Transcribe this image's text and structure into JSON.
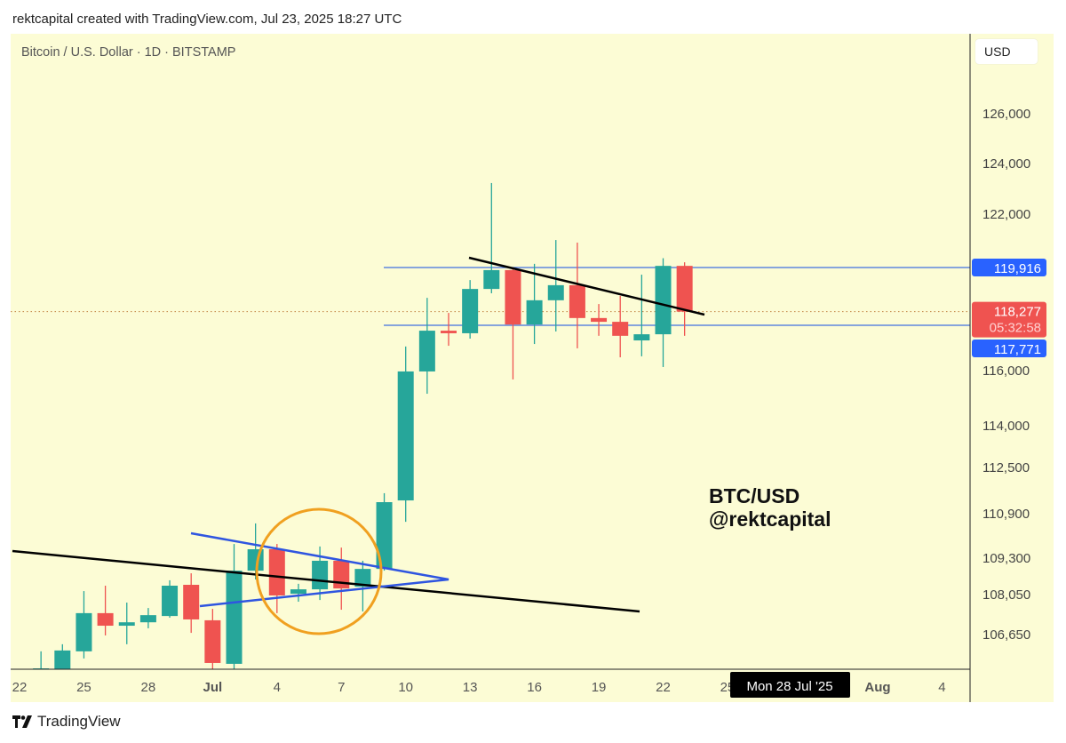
{
  "header": {
    "credit": "rektcapital created with TradingView.com, Jul 23, 2025 18:27 UTC"
  },
  "symbol_line": "Bitcoin / U.S. Dollar · 1D · BITSTAMP",
  "currency_button": "USD",
  "footer": {
    "brand": "TradingView"
  },
  "colors": {
    "up": "#26a69a",
    "down": "#ef5350",
    "background": "#fcfcd5",
    "level_lines": "#3f6fe0",
    "circle": "#f0a020",
    "trendlines": "#000000"
  },
  "chart_data": {
    "type": "candlestick",
    "title": "Bitcoin / U.S. Dollar · 1D · BITSTAMP",
    "y_scale": "log",
    "y_ticks": [
      126000,
      124000,
      122000,
      116000,
      114000,
      112500,
      110900,
      109300,
      108050,
      106650
    ],
    "y_tick_labels": [
      "126,000",
      "124,000",
      "122,000",
      "116,000",
      "114,000",
      "112,500",
      "110,900",
      "109,300",
      "108,050",
      "106,650"
    ],
    "x_tick_labels": [
      {
        "label": "22",
        "date": "2025-06-22"
      },
      {
        "label": "25",
        "date": "2025-06-25"
      },
      {
        "label": "28",
        "date": "2025-06-28"
      },
      {
        "label": "Jul",
        "date": "2025-07-01",
        "bold": true
      },
      {
        "label": "4",
        "date": "2025-07-04"
      },
      {
        "label": "7",
        "date": "2025-07-07"
      },
      {
        "label": "10",
        "date": "2025-07-10"
      },
      {
        "label": "13",
        "date": "2025-07-13"
      },
      {
        "label": "16",
        "date": "2025-07-16"
      },
      {
        "label": "19",
        "date": "2025-07-19"
      },
      {
        "label": "22",
        "date": "2025-07-22"
      },
      {
        "label": "25",
        "date": "2025-07-25"
      },
      {
        "label": "Aug",
        "date": "2025-08-01",
        "bold": true
      },
      {
        "label": "4",
        "date": "2025-08-04"
      }
    ],
    "crosshair_date_label": "Mon 28 Jul '25",
    "candles": [
      {
        "date": "2025-06-23",
        "o": 105430,
        "h": 106060,
        "l": 105430,
        "c": 105460
      },
      {
        "date": "2025-06-24",
        "o": 105430,
        "h": 106310,
        "l": 105430,
        "c": 106090
      },
      {
        "date": "2025-06-25",
        "o": 106060,
        "h": 108170,
        "l": 105810,
        "c": 107400
      },
      {
        "date": "2025-06-26",
        "o": 107400,
        "h": 108355,
        "l": 106620,
        "c": 106960
      },
      {
        "date": "2025-06-27",
        "o": 106960,
        "h": 107770,
        "l": 106310,
        "c": 107080
      },
      {
        "date": "2025-06-28",
        "o": 107080,
        "h": 107580,
        "l": 106870,
        "c": 107330
      },
      {
        "date": "2025-06-29",
        "o": 107300,
        "h": 108540,
        "l": 107240,
        "c": 108355
      },
      {
        "date": "2025-06-30",
        "o": 108385,
        "h": 108780,
        "l": 106710,
        "c": 107180
      },
      {
        "date": "2025-07-01",
        "o": 107150,
        "h": 107550,
        "l": 105430,
        "c": 105650
      },
      {
        "date": "2025-07-02",
        "o": 105620,
        "h": 109810,
        "l": 105430,
        "c": 108870
      },
      {
        "date": "2025-07-03",
        "o": 108870,
        "h": 110550,
        "l": 108570,
        "c": 109620
      },
      {
        "date": "2025-07-04",
        "o": 109620,
        "h": 109810,
        "l": 107400,
        "c": 108020
      },
      {
        "date": "2025-07-05",
        "o": 108080,
        "h": 108420,
        "l": 107800,
        "c": 108230
      },
      {
        "date": "2025-07-06",
        "o": 108230,
        "h": 109720,
        "l": 107860,
        "c": 109210
      },
      {
        "date": "2025-07-07",
        "o": 109210,
        "h": 109680,
        "l": 107520,
        "c": 108260
      },
      {
        "date": "2025-07-08",
        "o": 108320,
        "h": 109210,
        "l": 107460,
        "c": 108930
      },
      {
        "date": "2025-07-09",
        "o": 108930,
        "h": 111610,
        "l": 108870,
        "c": 111300
      },
      {
        "date": "2025-07-10",
        "o": 111360,
        "h": 116940,
        "l": 110610,
        "c": 115970
      },
      {
        "date": "2025-07-11",
        "o": 115970,
        "h": 118790,
        "l": 115160,
        "c": 117560
      },
      {
        "date": "2025-07-12",
        "o": 117560,
        "h": 118230,
        "l": 116970,
        "c": 117460
      },
      {
        "date": "2025-07-13",
        "o": 117460,
        "h": 119450,
        "l": 117250,
        "c": 119120
      },
      {
        "date": "2025-07-14",
        "o": 119120,
        "h": 123230,
        "l": 118960,
        "c": 119820
      },
      {
        "date": "2025-07-15",
        "o": 119820,
        "h": 119850,
        "l": 115680,
        "c": 117800
      },
      {
        "date": "2025-07-16",
        "o": 117800,
        "h": 120060,
        "l": 117040,
        "c": 118700
      },
      {
        "date": "2025-07-17",
        "o": 118700,
        "h": 120990,
        "l": 117530,
        "c": 119260
      },
      {
        "date": "2025-07-18",
        "o": 119260,
        "h": 120890,
        "l": 116870,
        "c": 118040
      },
      {
        "date": "2025-07-19",
        "o": 118040,
        "h": 118560,
        "l": 117360,
        "c": 117900
      },
      {
        "date": "2025-07-20",
        "o": 117900,
        "h": 118860,
        "l": 116520,
        "c": 117360
      },
      {
        "date": "2025-07-21",
        "o": 117180,
        "h": 119650,
        "l": 116560,
        "c": 117420
      },
      {
        "date": "2025-07-22",
        "o": 117420,
        "h": 120280,
        "l": 116140,
        "c": 119980
      },
      {
        "date": "2025-07-23",
        "o": 119980,
        "h": 120120,
        "l": 117360,
        "c": 118277
      }
    ],
    "horizontal_levels": [
      {
        "price": 119916,
        "label": "119,916"
      },
      {
        "price": 117771,
        "label": "117,771"
      }
    ],
    "last_price": {
      "price": 118277,
      "label": "118,277",
      "countdown": "05:32:58"
    },
    "annotation": {
      "line1": "BTC/USD",
      "line2": "@rektcapital"
    }
  }
}
